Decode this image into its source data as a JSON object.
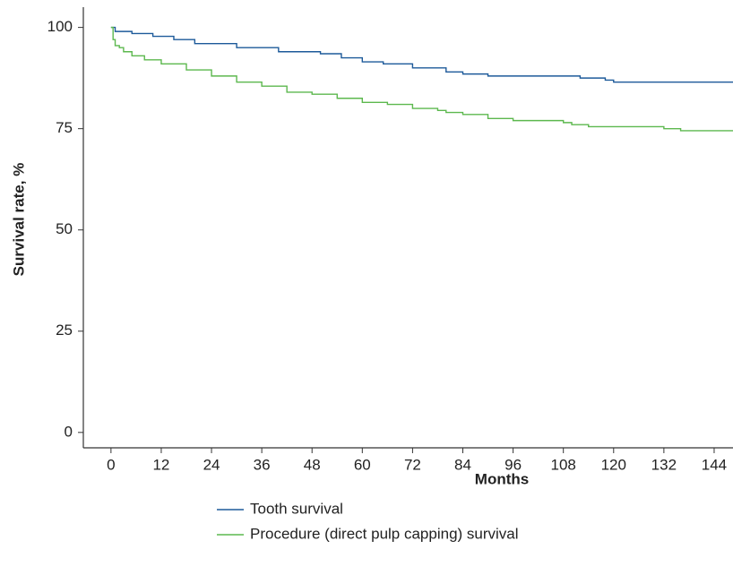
{
  "chart_data": {
    "type": "step-line",
    "x_label": "Months",
    "y_label": "Survival rate, %",
    "xlim": [
      -6.6,
      148.5
    ],
    "ylim": [
      -3.8,
      105
    ],
    "xticks": [
      0,
      12,
      24,
      36,
      48,
      60,
      72,
      84,
      96,
      108,
      120,
      132,
      144
    ],
    "yticks": [
      0,
      25,
      50,
      75,
      100
    ],
    "series": [
      {
        "name": "Tooth survival",
        "color": "#1d5a9a",
        "x": [
          0,
          1,
          5,
          10,
          15,
          20,
          30,
          40,
          50,
          55,
          60,
          65,
          72,
          80,
          84,
          90,
          108,
          112,
          118,
          120,
          148.5
        ],
        "values": [
          100,
          99,
          98.5,
          97.8,
          97,
          96,
          95,
          94,
          93.5,
          92.5,
          91.5,
          91,
          90,
          89,
          88.5,
          88,
          88,
          87.5,
          87,
          86.5,
          86.5
        ]
      },
      {
        "name": "Procedure (direct pulp capping) survival",
        "color": "#5cb84e",
        "x": [
          0,
          0.5,
          1,
          2,
          3,
          5,
          8,
          12,
          18,
          24,
          30,
          36,
          42,
          48,
          54,
          60,
          66,
          72,
          78,
          80,
          84,
          90,
          96,
          108,
          110,
          114,
          132,
          136,
          148.5
        ],
        "values": [
          100,
          97,
          95.5,
          95,
          94,
          93,
          92,
          91,
          89.5,
          88,
          86.5,
          85.5,
          84,
          83.5,
          82.5,
          81.5,
          81,
          80,
          79.5,
          79,
          78.5,
          77.5,
          77,
          76.5,
          76,
          75.5,
          75,
          74.5,
          74.5
        ]
      }
    ]
  }
}
